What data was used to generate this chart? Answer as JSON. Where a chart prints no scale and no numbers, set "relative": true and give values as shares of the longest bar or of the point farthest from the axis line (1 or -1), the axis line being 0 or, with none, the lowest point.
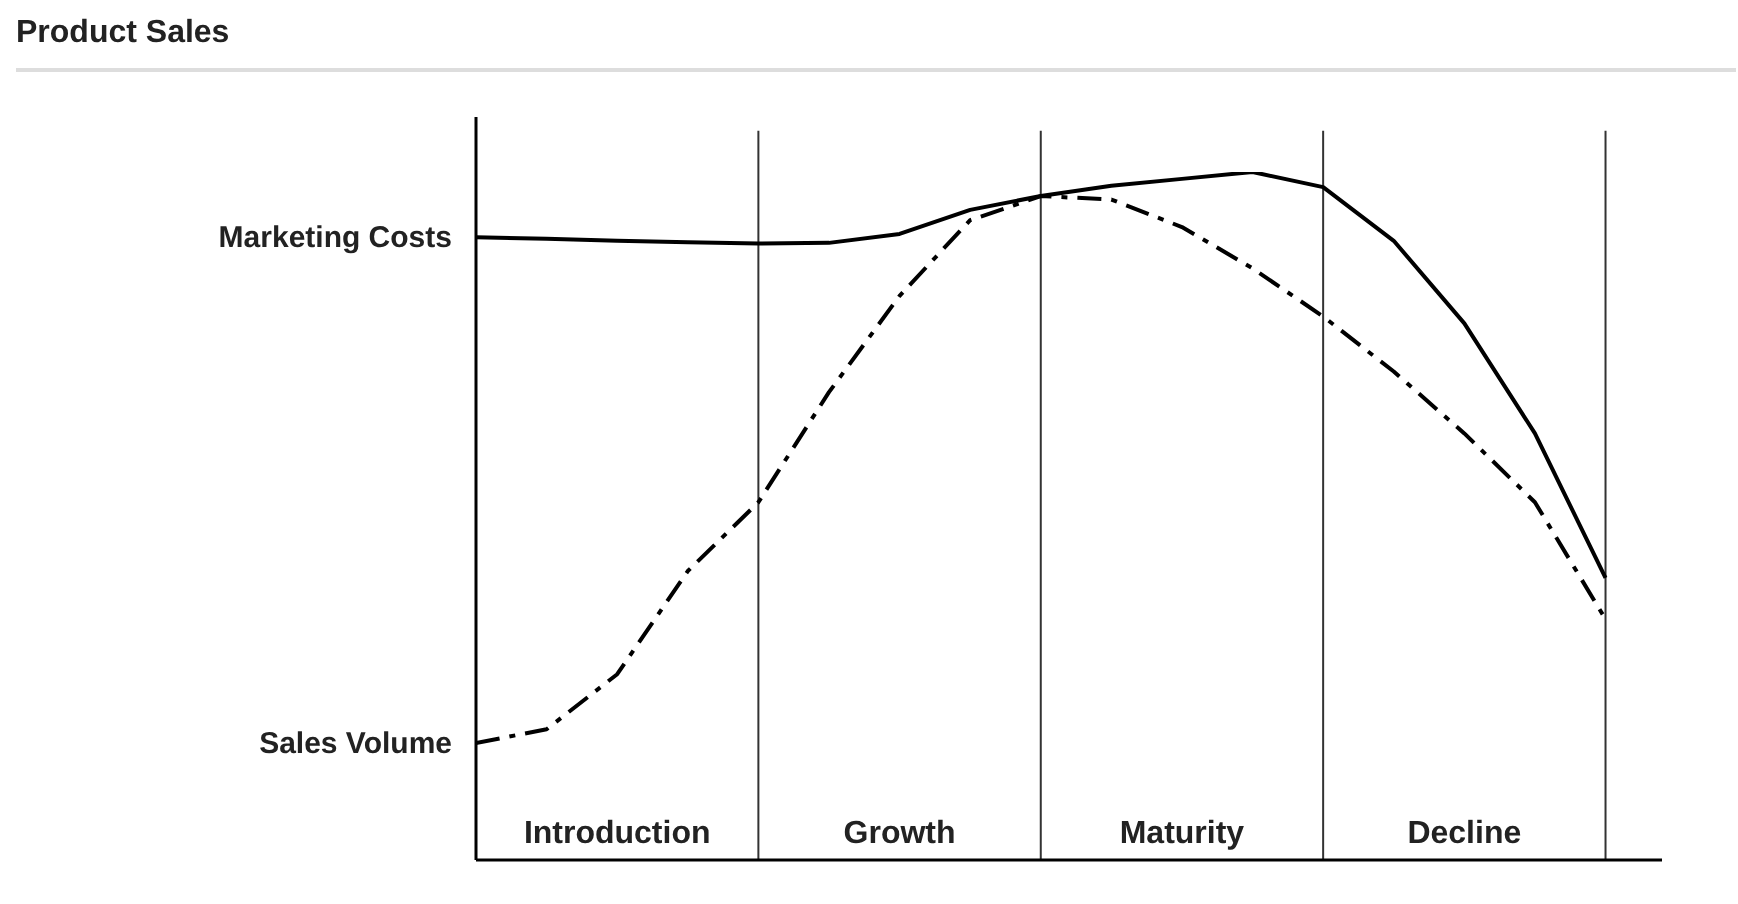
{
  "chart_data": {
    "type": "line",
    "title": "Product Sales",
    "relative": true,
    "grid": "x",
    "legend": false,
    "marker": "none",
    "categories": [
      null,
      null,
      "Introduction",
      null,
      null,
      null,
      "Growth",
      null,
      null,
      null,
      "Maturity",
      null,
      null,
      null,
      "Decline",
      null,
      null
    ],
    "series": [
      {
        "name": "Marketing Costs",
        "color": "#000000",
        "line_style": "solid",
        "values": [
          0.905,
          0.903,
          0.9,
          0.898,
          0.896,
          0.897,
          0.91,
          0.945,
          0.965,
          0.98,
          0.99,
          1,
          0.978,
          0.9,
          0.78,
          0.62,
          0.41
        ]
      },
      {
        "name": "Sales Volume",
        "color": "#000000",
        "line_style": "dashed",
        "values": [
          0.17,
          0.19,
          0.27,
          0.42,
          0.52,
          0.68,
          0.82,
          0.93,
          0.965,
          0.96,
          0.92,
          0.86,
          0.79,
          0.71,
          0.62,
          0.52,
          0.35
        ]
      }
    ]
  }
}
